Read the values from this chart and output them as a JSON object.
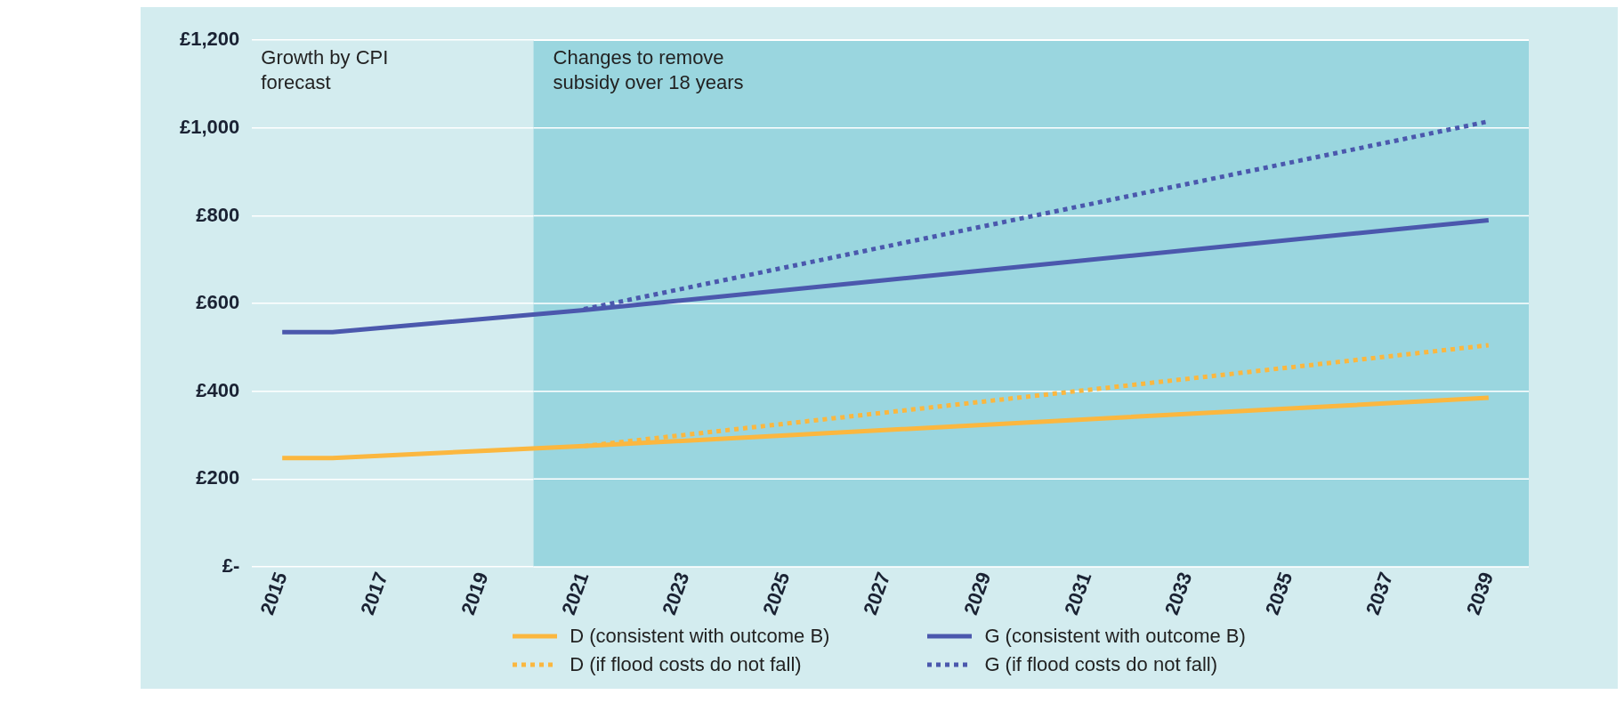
{
  "chart_data": {
    "type": "line",
    "xlim": [
      2014.4,
      2039.8
    ],
    "xticks": [
      2015,
      2017,
      2019,
      2021,
      2023,
      2025,
      2027,
      2029,
      2031,
      2033,
      2035,
      2037,
      2039
    ],
    "ylim": [
      0,
      1200
    ],
    "yticks": [
      {
        "value": 0,
        "label": "£-"
      },
      {
        "value": 200,
        "label": "£200"
      },
      {
        "value": 400,
        "label": "£400"
      },
      {
        "value": 600,
        "label": "£600"
      },
      {
        "value": 800,
        "label": "£800"
      },
      {
        "value": 1000,
        "label": "£1,000"
      },
      {
        "value": 1200,
        "label": "£1,200"
      }
    ],
    "grid": "y",
    "legend": "bottom",
    "marker": "none",
    "series": [
      {
        "name": "D (consistent with outcome B)",
        "color": "#fbb73f",
        "line_style": "solid",
        "x": [
          2015,
          2016,
          2021,
          2039
        ],
        "values": [
          248,
          248,
          275,
          385
        ]
      },
      {
        "name": "G (consistent with outcome B)",
        "color": "#4b58ad",
        "line_style": "solid",
        "x": [
          2015,
          2016,
          2021,
          2039
        ],
        "values": [
          535,
          535,
          585,
          790
        ]
      },
      {
        "name": "D (if flood costs do not fall)",
        "color": "#fbb73f",
        "line_style": "dotted",
        "x": [
          2021,
          2039
        ],
        "values": [
          275,
          505
        ]
      },
      {
        "name": "G (if flood costs do not fall)",
        "color": "#4b58ad",
        "line_style": "dotted",
        "x": [
          2021,
          2039
        ],
        "values": [
          587,
          1015
        ]
      }
    ],
    "bands": [
      {
        "axis": "x",
        "from": 2020,
        "to": 2039.8,
        "label": "Changes to remove subsidy over 18 years",
        "color": "#9ad6df"
      }
    ],
    "annotations": [
      "Growth by CPI forecast"
    ]
  }
}
